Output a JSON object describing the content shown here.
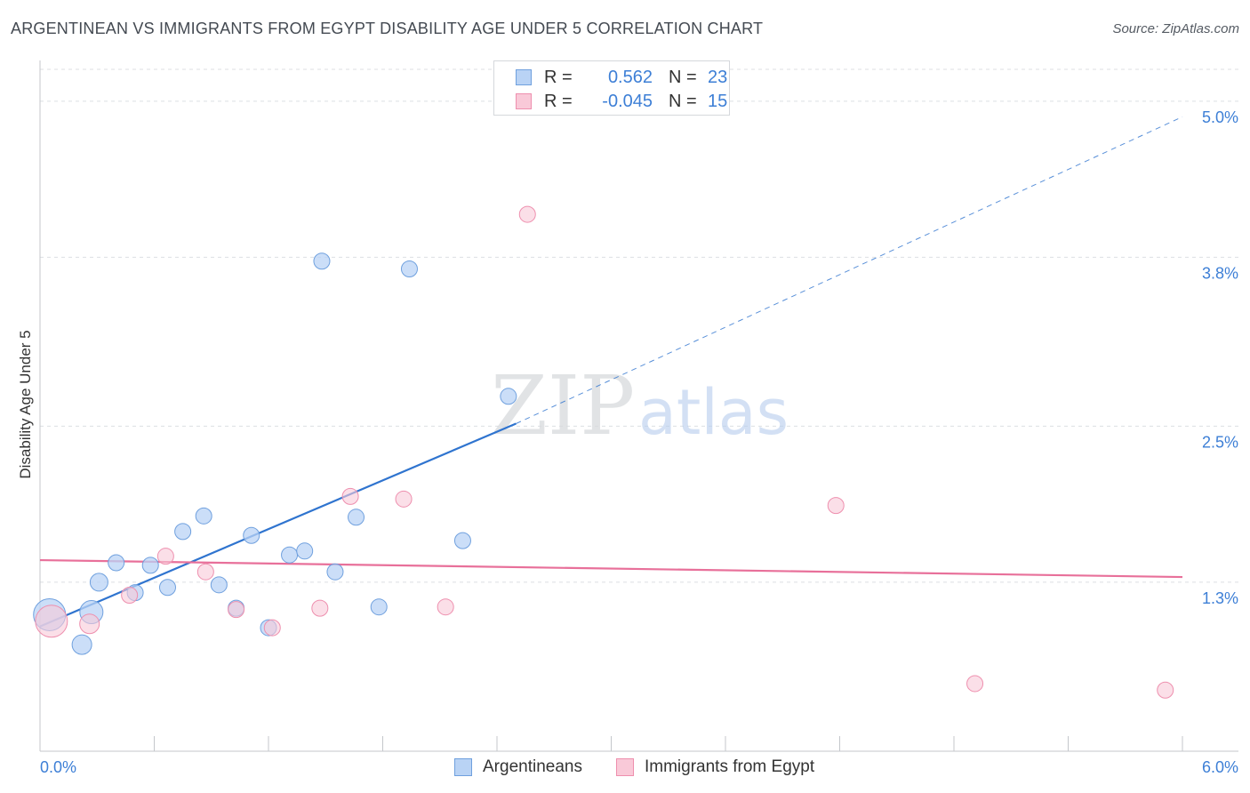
{
  "header": {
    "title": "ARGENTINEAN VS IMMIGRANTS FROM EGYPT DISABILITY AGE UNDER 5 CORRELATION CHART",
    "source": "Source: ZipAtlas.com"
  },
  "watermark": {
    "zip": "ZIP",
    "atlas": "atlas"
  },
  "legend": {
    "rows": [
      {
        "r_label": "R =",
        "r_value": "0.562",
        "n_label": "N =",
        "n_value": "23"
      },
      {
        "r_label": "R =",
        "r_value": "-0.045",
        "n_label": "N =",
        "n_value": "15"
      }
    ]
  },
  "colors": {
    "blue_fill": "#b9d3f5",
    "blue_stroke": "#6fa0de",
    "blue_line": "#2f74cf",
    "pink_fill": "#f9c9d8",
    "pink_stroke": "#ee8fae",
    "pink_line": "#e8709a",
    "tick_label": "#3d7fd6",
    "grid": "#dcdfe3"
  },
  "chart_data": {
    "type": "scatter",
    "title": "ARGENTINEAN VS IMMIGRANTS FROM EGYPT DISABILITY AGE UNDER 5 CORRELATION CHART",
    "xlabel": "",
    "ylabel": "Disability Age Under 5",
    "xlim": [
      0.0,
      6.0
    ],
    "ylim": [
      0.0,
      5.3
    ],
    "x_tick_labels": [
      "0.0%",
      "6.0%"
    ],
    "y_ticks": [
      1.3,
      2.5,
      3.8,
      5.0
    ],
    "y_tick_labels": [
      "1.3%",
      "2.5%",
      "3.8%",
      "5.0%"
    ],
    "grid": "horizontal dashed",
    "legend_position": "top-center",
    "series": [
      {
        "name": "Argentineans",
        "r": 0.562,
        "n": 23,
        "points": [
          {
            "x": 0.05,
            "y": 1.05,
            "size": 18
          },
          {
            "x": 0.27,
            "y": 1.07,
            "size": 13
          },
          {
            "x": 0.22,
            "y": 0.82,
            "size": 11
          },
          {
            "x": 0.31,
            "y": 1.3,
            "size": 10
          },
          {
            "x": 0.4,
            "y": 1.45,
            "size": 9
          },
          {
            "x": 0.5,
            "y": 1.22,
            "size": 9
          },
          {
            "x": 0.58,
            "y": 1.43,
            "size": 9
          },
          {
            "x": 0.67,
            "y": 1.26,
            "size": 9
          },
          {
            "x": 0.75,
            "y": 1.69,
            "size": 9
          },
          {
            "x": 0.86,
            "y": 1.81,
            "size": 9
          },
          {
            "x": 0.94,
            "y": 1.28,
            "size": 9
          },
          {
            "x": 1.03,
            "y": 1.1,
            "size": 9
          },
          {
            "x": 1.11,
            "y": 1.66,
            "size": 9
          },
          {
            "x": 1.2,
            "y": 0.95,
            "size": 9
          },
          {
            "x": 1.31,
            "y": 1.51,
            "size": 9
          },
          {
            "x": 1.39,
            "y": 1.54,
            "size": 9
          },
          {
            "x": 1.48,
            "y": 3.77,
            "size": 9
          },
          {
            "x": 1.55,
            "y": 1.38,
            "size": 9
          },
          {
            "x": 1.66,
            "y": 1.8,
            "size": 9
          },
          {
            "x": 1.78,
            "y": 1.11,
            "size": 9
          },
          {
            "x": 1.94,
            "y": 3.71,
            "size": 9
          },
          {
            "x": 2.22,
            "y": 1.62,
            "size": 9
          },
          {
            "x": 2.46,
            "y": 2.73,
            "size": 9
          }
        ],
        "trend": {
          "x0": 0.0,
          "y0": 0.96,
          "x1": 2.5,
          "y1": 2.52,
          "dashed_to_x": 6.0,
          "dashed_to_y": 4.88
        }
      },
      {
        "name": "Immigrants from Egypt",
        "r": -0.045,
        "n": 15,
        "points": [
          {
            "x": 0.06,
            "y": 1.0,
            "size": 18
          },
          {
            "x": 0.26,
            "y": 0.98,
            "size": 11
          },
          {
            "x": 0.47,
            "y": 1.2,
            "size": 9
          },
          {
            "x": 0.66,
            "y": 1.5,
            "size": 9
          },
          {
            "x": 0.87,
            "y": 1.38,
            "size": 9
          },
          {
            "x": 1.03,
            "y": 1.09,
            "size": 9
          },
          {
            "x": 1.22,
            "y": 0.95,
            "size": 9
          },
          {
            "x": 1.47,
            "y": 1.1,
            "size": 9
          },
          {
            "x": 1.63,
            "y": 1.96,
            "size": 9
          },
          {
            "x": 1.91,
            "y": 1.94,
            "size": 9
          },
          {
            "x": 2.13,
            "y": 1.11,
            "size": 9
          },
          {
            "x": 2.56,
            "y": 4.13,
            "size": 9
          },
          {
            "x": 4.18,
            "y": 1.89,
            "size": 9
          },
          {
            "x": 4.91,
            "y": 0.52,
            "size": 9
          },
          {
            "x": 5.91,
            "y": 0.47,
            "size": 9
          }
        ],
        "trend": {
          "x0": 0.0,
          "y0": 1.47,
          "x1": 6.0,
          "y1": 1.34
        }
      }
    ]
  }
}
